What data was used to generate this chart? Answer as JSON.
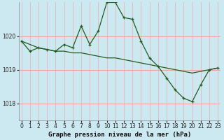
{
  "title": "Graphe pression niveau de la mer (hPa)",
  "bg_color": "#cce8f0",
  "plot_bg_color": "#cce8f0",
  "grid_color": "#f0a0a0",
  "line_color": "#1e5c1e",
  "x_labels": [
    "0",
    "1",
    "2",
    "3",
    "4",
    "5",
    "6",
    "7",
    "8",
    "9",
    "10",
    "11",
    "12",
    "13",
    "14",
    "15",
    "16",
    "17",
    "18",
    "19",
    "20",
    "21",
    "22",
    "23"
  ],
  "y_ticks": [
    1018,
    1019,
    1020
  ],
  "ylim": [
    1017.5,
    1021.0
  ],
  "xlim": [
    -0.3,
    23.3
  ],
  "series1_x": [
    0,
    1,
    2,
    3,
    4,
    5,
    6,
    7,
    8,
    9,
    10,
    11,
    12,
    13,
    14,
    15,
    16,
    17,
    18,
    19,
    20,
    21,
    22,
    23
  ],
  "series1_y": [
    1019.85,
    1019.55,
    1019.65,
    1019.6,
    1019.55,
    1019.75,
    1019.65,
    1020.3,
    1019.75,
    1020.15,
    1021.0,
    1021.0,
    1020.55,
    1020.5,
    1019.85,
    1019.35,
    1019.1,
    1018.75,
    1018.4,
    1018.15,
    1018.05,
    1018.55,
    1019.0,
    1019.05
  ],
  "series2_x": [
    0,
    1,
    2,
    3,
    4,
    5,
    6,
    7,
    8,
    9,
    10,
    11,
    12,
    13,
    14,
    15,
    16,
    17,
    18,
    19,
    20,
    21,
    22,
    23
  ],
  "series2_y": [
    1019.85,
    1019.75,
    1019.65,
    1019.6,
    1019.55,
    1019.55,
    1019.5,
    1019.5,
    1019.45,
    1019.4,
    1019.35,
    1019.35,
    1019.3,
    1019.25,
    1019.2,
    1019.15,
    1019.1,
    1019.05,
    1019.0,
    1018.95,
    1018.9,
    1018.95,
    1019.0,
    1019.05
  ],
  "tick_fontsize": 5.5,
  "label_fontsize": 6.5,
  "tick_color": "#222222",
  "spine_color": "#888888"
}
